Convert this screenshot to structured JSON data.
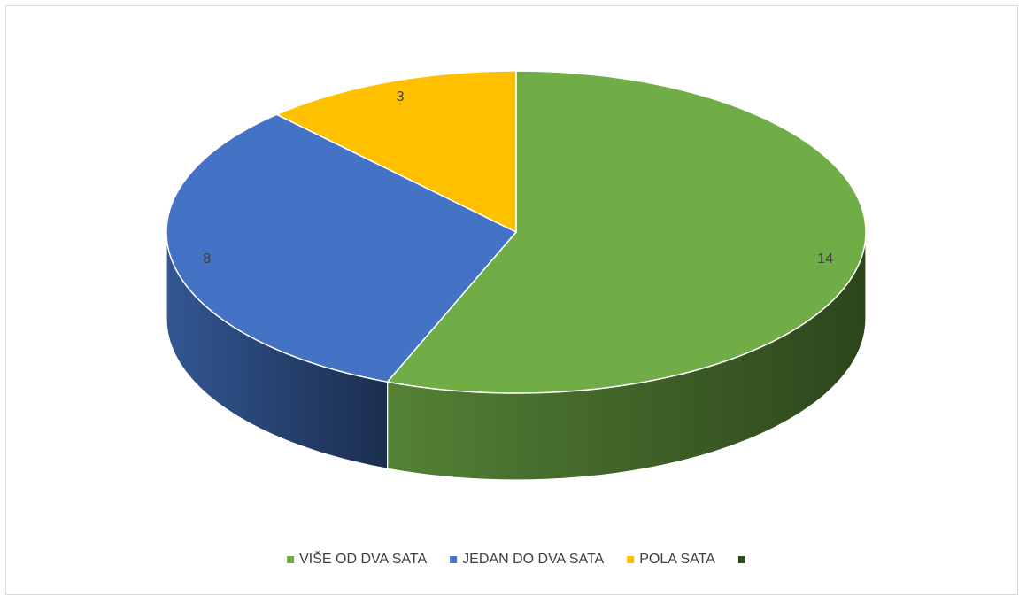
{
  "chart_data": {
    "type": "pie3d",
    "categories": [
      "VIŠE OD DVA SATA",
      "JEDAN DO DVA SATA",
      "POLA SATA",
      null
    ],
    "values": [
      14,
      8,
      3,
      null
    ],
    "colors": [
      "#70ad47",
      "#4472c4",
      "#ffc000",
      "#2e4d1f"
    ],
    "legend": "bottom"
  }
}
